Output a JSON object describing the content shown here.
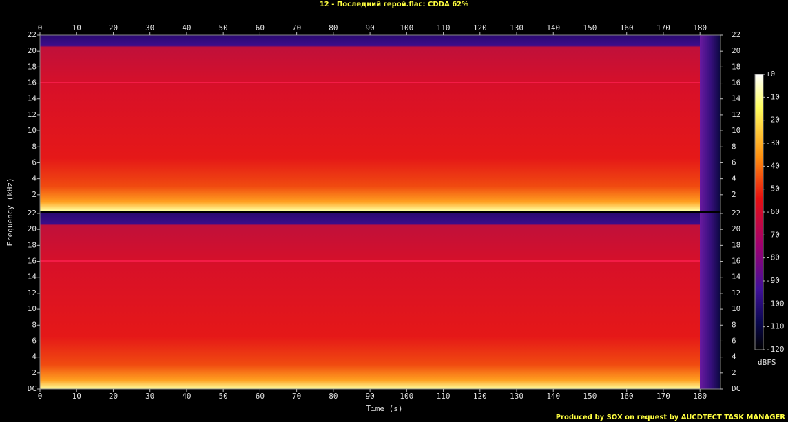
{
  "chart_data": {
    "type": "spectrogram",
    "title": "12 - Последний герой.flac: CDDA 62%",
    "x_label": "Time (s)",
    "y_label": "Frequency (kHz)",
    "footer": "Produced by SOX on request by AUCDTECT TASK MANAGER",
    "xlim": [
      0,
      185.6
    ],
    "xticks": [
      0,
      10,
      20,
      30,
      40,
      50,
      60,
      70,
      80,
      90,
      100,
      110,
      120,
      130,
      140,
      150,
      160,
      170,
      180
    ],
    "channels": [
      {
        "ylim": [
          0,
          22
        ],
        "yticks": [
          2,
          4,
          6,
          8,
          10,
          12,
          14,
          16,
          18,
          20,
          22
        ]
      },
      {
        "ylim": [
          0,
          22
        ],
        "yticks": [
          {
            "value": 0,
            "label": "DC"
          },
          2,
          4,
          6,
          8,
          10,
          12,
          14,
          16,
          18,
          20,
          22
        ]
      }
    ],
    "colorbar": {
      "label": "dBFS",
      "lim": [
        -120,
        0
      ],
      "ticks": [
        {
          "value": 0,
          "label": "+0"
        },
        -10,
        -20,
        -30,
        -40,
        -50,
        -60,
        -70,
        -80,
        -90,
        -100,
        -110,
        -120
      ]
    }
  }
}
